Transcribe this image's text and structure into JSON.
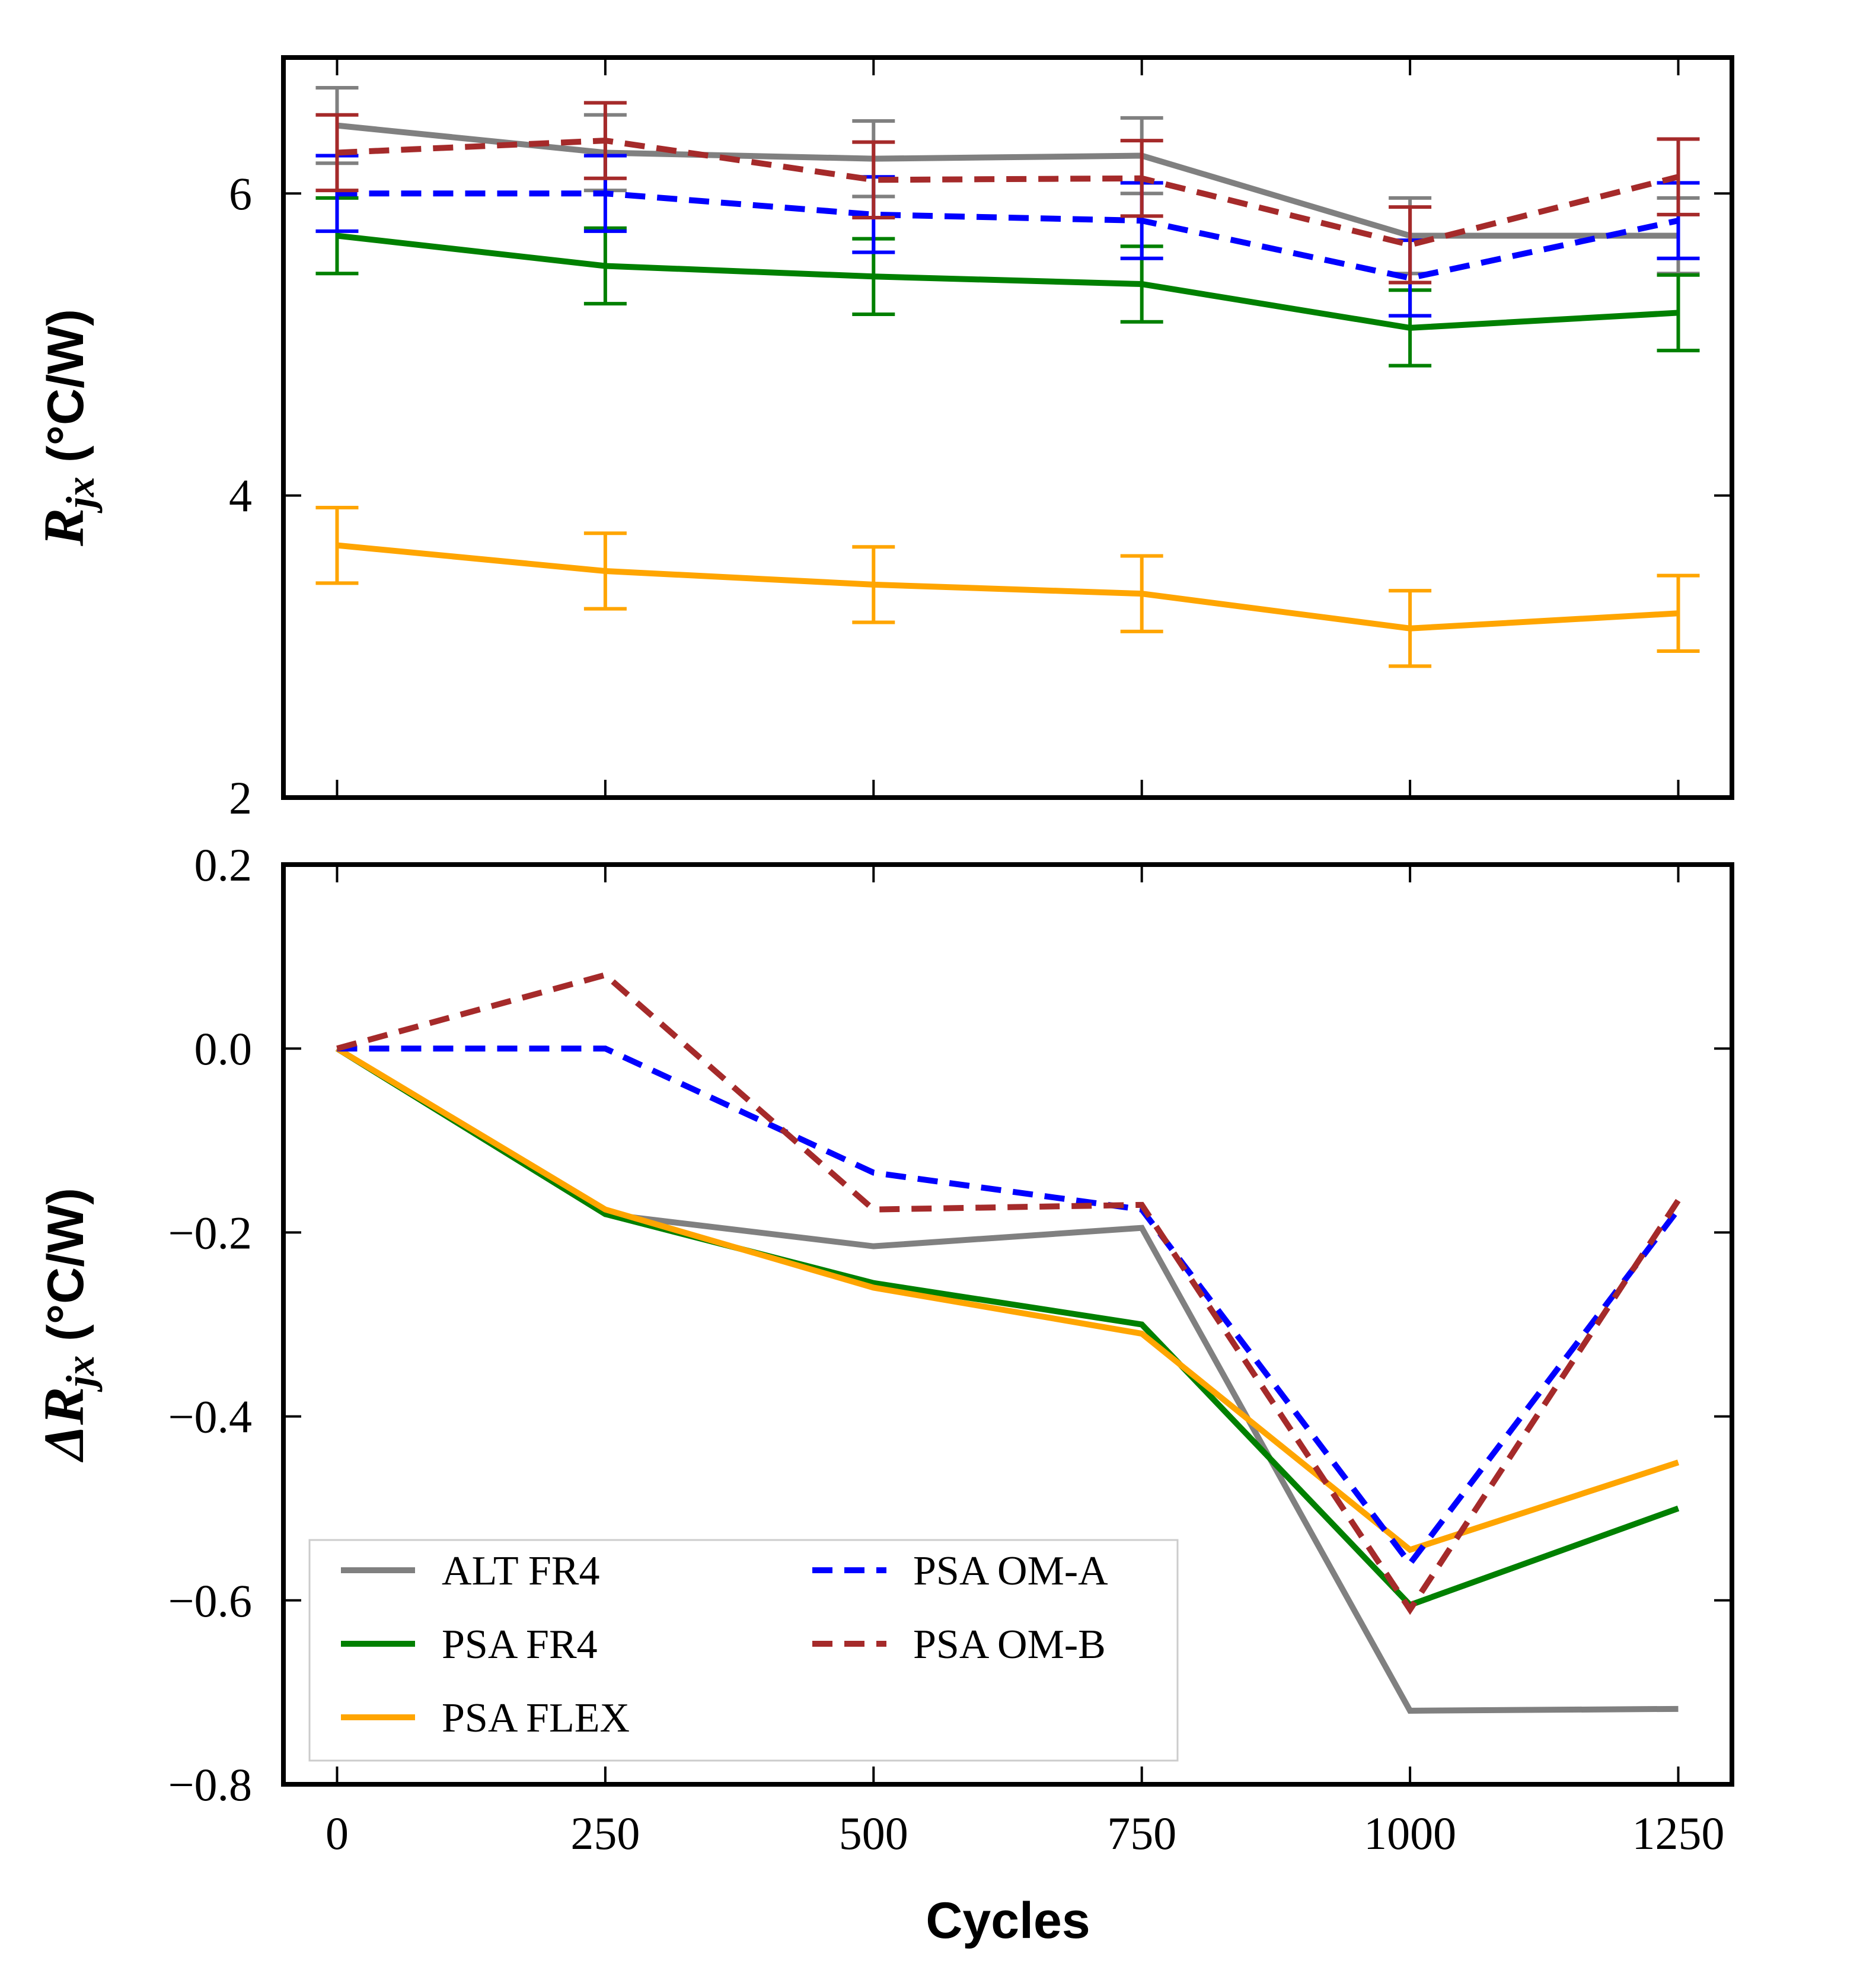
{
  "chart_data": [
    {
      "type": "line",
      "ylabel": "R_jx (°C/W)",
      "ylabel_main": "R",
      "ylabel_sub": "jx",
      "ylabel_unit": " (°C/W)",
      "ylim": [
        2,
        6.9
      ],
      "yticks": [
        2,
        4,
        6
      ],
      "ytick_labels": [
        "2",
        "4",
        "6"
      ],
      "x": [
        0,
        250,
        500,
        750,
        1000,
        1250
      ],
      "xlim": [
        -50,
        1300
      ],
      "grid": false,
      "error_bars": true,
      "series": [
        {
          "name": "ALT FR4",
          "color": "#808080",
          "dash": "solid",
          "values": [
            6.45,
            6.27,
            6.23,
            6.25,
            5.72,
            5.72
          ],
          "errors": [
            0.25,
            0.25,
            0.25,
            0.25,
            0.25,
            0.25
          ]
        },
        {
          "name": "PSA FR4",
          "color": "#008000",
          "dash": "solid",
          "values": [
            5.72,
            5.52,
            5.45,
            5.4,
            5.11,
            5.21
          ],
          "errors": [
            0.25,
            0.25,
            0.25,
            0.25,
            0.25,
            0.25
          ]
        },
        {
          "name": "PSA FLEX",
          "color": "#FFA500",
          "dash": "solid",
          "values": [
            3.67,
            3.5,
            3.41,
            3.35,
            3.12,
            3.22
          ],
          "errors": [
            0.25,
            0.25,
            0.25,
            0.25,
            0.25,
            0.25
          ]
        },
        {
          "name": "PSA OM-A",
          "color": "#0000FF",
          "dash": "dashed",
          "values": [
            6.0,
            6.0,
            5.86,
            5.82,
            5.44,
            5.82
          ],
          "errors": [
            0.25,
            0.25,
            0.25,
            0.25,
            0.25,
            0.25
          ]
        },
        {
          "name": "PSA OM-B",
          "color": "#A52A2A",
          "dash": "dashed",
          "values": [
            6.27,
            6.35,
            6.09,
            6.1,
            5.66,
            6.11
          ],
          "errors": [
            0.25,
            0.25,
            0.25,
            0.25,
            0.25,
            0.25
          ]
        }
      ]
    },
    {
      "type": "line",
      "xlabel": "Cycles",
      "ylabel": "ΔR_jx (°C/W)",
      "ylabel_main": "ΔR",
      "ylabel_sub": "jx",
      "ylabel_unit": " (°C/W)",
      "ylim": [
        -0.8,
        0.2
      ],
      "yticks": [
        -0.8,
        -0.6,
        -0.4,
        -0.2,
        0.0,
        0.2
      ],
      "ytick_labels": [
        "−0.8",
        "−0.6",
        "−0.4",
        "−0.2",
        "0.0",
        "0.2"
      ],
      "x": [
        0,
        250,
        500,
        750,
        1000,
        1250
      ],
      "xlim": [
        -50,
        1300
      ],
      "xticks": [
        0,
        250,
        500,
        750,
        1000,
        1250
      ],
      "xtick_labels": [
        "0",
        "250",
        "500",
        "750",
        "1000",
        "1250"
      ],
      "legend_position": "lower-left",
      "grid": false,
      "series": [
        {
          "name": "ALT FR4",
          "color": "#808080",
          "dash": "solid",
          "values": [
            0.0,
            -0.18,
            -0.215,
            -0.195,
            -0.72,
            -0.718
          ]
        },
        {
          "name": "PSA FR4",
          "color": "#008000",
          "dash": "solid",
          "values": [
            0.0,
            -0.18,
            -0.255,
            -0.3,
            -0.605,
            -0.5
          ]
        },
        {
          "name": "PSA FLEX",
          "color": "#FFA500",
          "dash": "solid",
          "values": [
            0.0,
            -0.175,
            -0.26,
            -0.31,
            -0.545,
            -0.45
          ]
        },
        {
          "name": "PSA OM-A",
          "color": "#0000FF",
          "dash": "dashed",
          "values": [
            0.0,
            0.0,
            -0.135,
            -0.175,
            -0.56,
            -0.175
          ]
        },
        {
          "name": "PSA OM-B",
          "color": "#A52A2A",
          "dash": "dashed",
          "values": [
            0.0,
            0.08,
            -0.175,
            -0.17,
            -0.61,
            -0.165
          ]
        }
      ]
    }
  ]
}
